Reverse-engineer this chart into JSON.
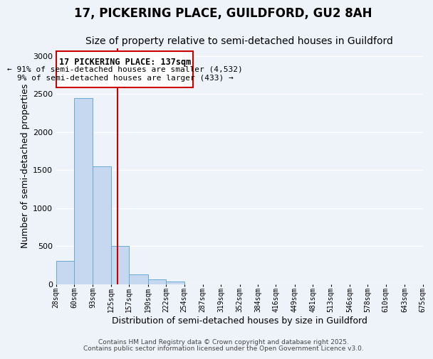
{
  "title": "17, PICKERING PLACE, GUILDFORD, GU2 8AH",
  "subtitle": "Size of property relative to semi-detached houses in Guildford",
  "xlabel": "Distribution of semi-detached houses by size in Guildford",
  "ylabel": "Number of semi-detached properties",
  "bar_values": [
    300,
    2450,
    1550,
    500,
    130,
    60,
    30,
    0,
    0,
    0,
    0,
    0,
    0,
    0,
    0,
    0,
    0,
    0,
    0,
    0
  ],
  "bin_edges": [
    28,
    60,
    93,
    125,
    157,
    190,
    222,
    254,
    287,
    319,
    352,
    384,
    416,
    449,
    481,
    513,
    546,
    578,
    610,
    643,
    675
  ],
  "tick_labels": [
    "28sqm",
    "60sqm",
    "93sqm",
    "125sqm",
    "157sqm",
    "190sqm",
    "222sqm",
    "254sqm",
    "287sqm",
    "319sqm",
    "352sqm",
    "384sqm",
    "416sqm",
    "449sqm",
    "481sqm",
    "513sqm",
    "546sqm",
    "578sqm",
    "610sqm",
    "643sqm",
    "675sqm"
  ],
  "bar_color": "#c5d8f0",
  "bar_edgecolor": "#6aaad4",
  "vline_x": 137,
  "vline_color": "#cc0000",
  "ylim": [
    0,
    3100
  ],
  "yticks": [
    0,
    500,
    1000,
    1500,
    2000,
    2500,
    3000
  ],
  "annotation_title": "17 PICKERING PLACE: 137sqm",
  "annotation_line1": "← 91% of semi-detached houses are smaller (4,532)",
  "annotation_line2": "9% of semi-detached houses are larger (433) →",
  "footer1": "Contains HM Land Registry data © Crown copyright and database right 2025.",
  "footer2": "Contains public sector information licensed under the Open Government Licence v3.0.",
  "background_color": "#eef2f9",
  "grid_color": "#ffffff",
  "title_fontsize": 12,
  "subtitle_fontsize": 10,
  "axis_label_fontsize": 9,
  "tick_fontsize": 7,
  "footer_fontsize": 6.5,
  "annotation_title_fontsize": 8.5,
  "annotation_body_fontsize": 8
}
